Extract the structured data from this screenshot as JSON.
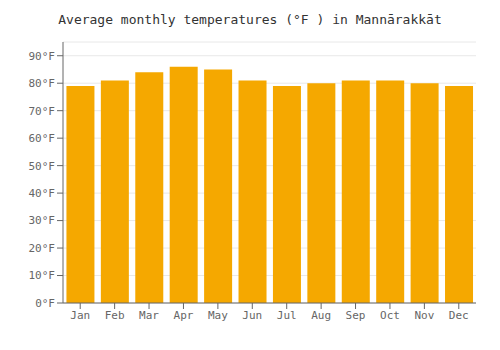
{
  "chart_data": {
    "type": "bar",
    "title": "Average monthly temperatures (°F ) in Mannārakkāt",
    "categories": [
      "Jan",
      "Feb",
      "Mar",
      "Apr",
      "May",
      "Jun",
      "Jul",
      "Aug",
      "Sep",
      "Oct",
      "Nov",
      "Dec"
    ],
    "values": [
      79,
      81,
      84,
      86,
      85,
      81,
      79,
      80,
      81,
      81,
      80,
      79
    ],
    "color": "#F5A800",
    "ylim": [
      0,
      95
    ],
    "yticks": [
      {
        "value": 0,
        "label": "0°F"
      },
      {
        "value": 10,
        "label": "10°F"
      },
      {
        "value": 20,
        "label": "20°F"
      },
      {
        "value": 30,
        "label": "30°F"
      },
      {
        "value": 40,
        "label": "40°F"
      },
      {
        "value": 50,
        "label": "50°F"
      },
      {
        "value": 60,
        "label": "60°F"
      },
      {
        "value": 70,
        "label": "70°F"
      },
      {
        "value": 80,
        "label": "80°F"
      },
      {
        "value": 90,
        "label": "90°F"
      }
    ],
    "grid": true
  }
}
